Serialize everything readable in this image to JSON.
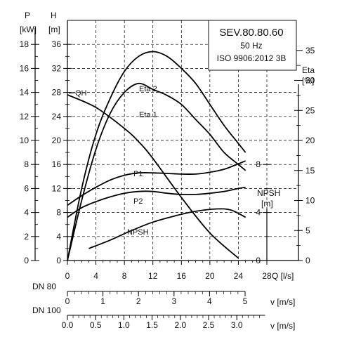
{
  "chart_data": {
    "type": "line",
    "title": "SEV.80.80.60",
    "subtitle_lines": [
      "50 Hz",
      "ISO 9906:2012 3B"
    ],
    "x_axis": {
      "label": "Q [l/s]",
      "range": [
        0,
        28
      ],
      "ticks": [
        "0",
        "4",
        "8",
        "12",
        "16",
        "20",
        "24",
        "28"
      ]
    },
    "velocity_axes": [
      {
        "name": "DN 80",
        "label": "v [m/s]",
        "range": [
          0,
          5
        ],
        "ticks": [
          "0",
          "1",
          "2",
          "3",
          "4",
          "5"
        ]
      },
      {
        "name": "DN 100",
        "label": "v [m/s]",
        "range": [
          0,
          3.5
        ],
        "ticks": [
          "0.0",
          "0.5",
          "1.0",
          "1.5",
          "2.0",
          "2.5",
          "3.0"
        ]
      }
    ],
    "left_axes": [
      {
        "symbol": "P",
        "unit": "[kW]",
        "range": [
          0,
          20
        ],
        "ticks": [
          "0",
          "2",
          "4",
          "6",
          "8",
          "10",
          "12",
          "14",
          "16",
          "18"
        ]
      },
      {
        "symbol": "H",
        "unit": "[m]",
        "range": [
          0,
          40
        ],
        "ticks": [
          "0",
          "4",
          "8",
          "12",
          "16",
          "20",
          "24",
          "28",
          "32",
          "36"
        ]
      }
    ],
    "right_axes": [
      {
        "symbol": "Eta",
        "unit": "[%]",
        "range": [
          0,
          40
        ],
        "ticks": [
          "0",
          "5",
          "10",
          "15",
          "20",
          "25",
          "30",
          "35"
        ]
      },
      {
        "symbol": "NPSH",
        "unit": "[m]",
        "range": [
          0,
          8
        ],
        "ticks": [
          "0",
          "4",
          "8"
        ]
      }
    ],
    "grid": true,
    "legend": "none",
    "series": [
      {
        "name": "QH",
        "axis": "H",
        "x": [
          0,
          4,
          8,
          10,
          12,
          16,
          20,
          24
        ],
        "y": [
          27.6,
          25.5,
          22,
          19.8,
          17,
          10.5,
          4.6,
          0.4
        ]
      },
      {
        "name": "Eta 2",
        "axis": "Eta",
        "x": [
          0,
          2,
          4,
          6,
          8,
          10,
          12,
          14,
          16,
          18,
          20,
          22,
          24,
          25
        ],
        "y": [
          0,
          12,
          21,
          27,
          31.5,
          34,
          34.8,
          34,
          32,
          29.5,
          26,
          22.5,
          19.5,
          18
        ]
      },
      {
        "name": "Eta 1",
        "axis": "Eta",
        "x": [
          0,
          2,
          4,
          6,
          8,
          10,
          12,
          14,
          16,
          18,
          20,
          22,
          24,
          25
        ],
        "y": [
          0,
          10,
          18.5,
          24.5,
          28,
          29.5,
          28.5,
          27.5,
          26,
          23.5,
          21,
          18,
          16,
          15
        ]
      },
      {
        "name": "P1",
        "axis": "P",
        "x": [
          0,
          2,
          4,
          6,
          8,
          10,
          12,
          14,
          16,
          18,
          20,
          22,
          24,
          25
        ],
        "y": [
          4.6,
          5.4,
          6.1,
          6.7,
          7.1,
          7.3,
          7.3,
          7.25,
          7.2,
          7.2,
          7.35,
          7.6,
          8.05,
          8.3
        ]
      },
      {
        "name": "P2",
        "axis": "P",
        "x": [
          0,
          2,
          4,
          6,
          8,
          10,
          12,
          14,
          16,
          18,
          20,
          22,
          24,
          25
        ],
        "y": [
          3.6,
          4.4,
          4.9,
          5.3,
          5.6,
          5.75,
          5.75,
          5.6,
          5.5,
          5.5,
          5.6,
          5.75,
          6.0,
          6.1
        ]
      },
      {
        "name": "NPSH",
        "axis": "NPSH",
        "x": [
          3,
          6,
          9,
          12,
          15,
          18,
          21,
          23,
          25
        ],
        "y": [
          1.0,
          1.7,
          2.5,
          3.2,
          3.7,
          4.1,
          4.3,
          4.2,
          3.6
        ]
      }
    ]
  }
}
